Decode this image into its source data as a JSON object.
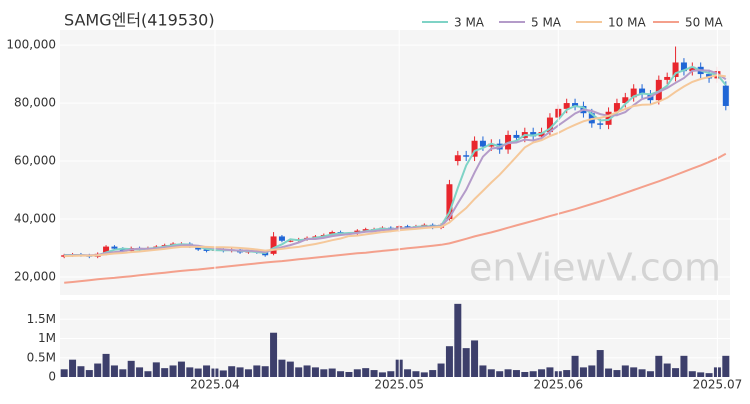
{
  "chart_data": [
    {
      "type": "candlestick",
      "title": "SAMG엔터(419530)",
      "watermark": "enViewV.com",
      "up_color": "#e8262d",
      "down_color": "#1f66d6",
      "open": [
        27000,
        27500,
        27800,
        27500,
        27000,
        28000,
        30500,
        29800,
        29000,
        30000,
        29500,
        30000,
        30500,
        31000,
        31500,
        31500,
        30500,
        29500,
        29000,
        29500,
        29000,
        29500,
        28500,
        28800,
        28500,
        28000,
        34000,
        32500,
        32500,
        33000,
        33500,
        34000,
        34500,
        35500,
        35000,
        35000,
        36000,
        36500,
        36500,
        37000,
        36000,
        37500,
        37000,
        37500,
        38000,
        37000,
        40000,
        60000,
        62000,
        61500,
        67000,
        65000,
        66000,
        64000,
        69000,
        68000,
        70000,
        68500,
        70000,
        75000,
        78000,
        80000,
        79000,
        76500,
        73000,
        72500,
        77000,
        80000,
        82000,
        85000,
        83000,
        81000,
        88000,
        89000,
        94000,
        91000,
        92500,
        90000,
        88500,
        86000
      ],
      "high": [
        28000,
        28300,
        28300,
        28000,
        28500,
        31000,
        31000,
        30300,
        30500,
        30500,
        30500,
        31000,
        31500,
        32000,
        32000,
        32000,
        31000,
        30000,
        30000,
        30000,
        30000,
        30000,
        29300,
        29300,
        29000,
        35500,
        34500,
        33000,
        33500,
        34000,
        34500,
        35000,
        36000,
        36000,
        35500,
        36500,
        37000,
        37000,
        37500,
        37500,
        38000,
        38000,
        38000,
        38500,
        38500,
        38500,
        53500,
        63500,
        63500,
        68500,
        68500,
        67500,
        67500,
        70500,
        70500,
        71500,
        71500,
        71500,
        76500,
        79500,
        81500,
        81500,
        80500,
        78000,
        74500,
        78500,
        81500,
        83500,
        86500,
        86500,
        84500,
        89500,
        90500,
        99500,
        95500,
        94000,
        94000,
        91500,
        92500,
        87500
      ],
      "low": [
        26500,
        27000,
        27000,
        26500,
        26500,
        27500,
        29300,
        28500,
        28500,
        29000,
        29000,
        29500,
        30000,
        30500,
        31000,
        30000,
        29000,
        28500,
        28500,
        28500,
        28500,
        28000,
        28000,
        28000,
        27000,
        27500,
        32000,
        32000,
        32000,
        32500,
        33000,
        33500,
        34000,
        34500,
        34500,
        34500,
        35500,
        36000,
        36000,
        35500,
        35500,
        36500,
        36500,
        37000,
        36500,
        36500,
        39500,
        58500,
        60000,
        60000,
        63500,
        63500,
        62500,
        62500,
        66500,
        66500,
        67000,
        67000,
        68500,
        73500,
        76500,
        77500,
        75000,
        71500,
        71000,
        71000,
        75500,
        78500,
        80500,
        81500,
        79500,
        79500,
        86500,
        87500,
        89500,
        89500,
        88500,
        87000,
        87000,
        77500
      ],
      "close": [
        27500,
        27800,
        27500,
        27000,
        28000,
        30500,
        29800,
        29000,
        30000,
        29500,
        30000,
        30500,
        31000,
        31500,
        31500,
        30500,
        29500,
        29000,
        29500,
        29000,
        29500,
        28500,
        28800,
        28500,
        27500,
        34000,
        32500,
        32500,
        33000,
        33500,
        34000,
        34500,
        35500,
        35000,
        35000,
        36000,
        36500,
        36500,
        37000,
        36000,
        37500,
        37000,
        37500,
        38000,
        37000,
        38000,
        52000,
        62000,
        61500,
        67000,
        65000,
        66000,
        64000,
        69000,
        68000,
        70000,
        68500,
        70000,
        75000,
        78000,
        80000,
        79000,
        76500,
        73000,
        72500,
        77000,
        80000,
        82000,
        85000,
        83000,
        81000,
        88000,
        89000,
        94000,
        91000,
        92500,
        90000,
        88500,
        91000,
        79000
      ],
      "series": [
        {
          "name": "3 MA",
          "color": "#7fd3c6",
          "values": [
            27600,
            27600,
            27600,
            27400,
            27500,
            28500,
            29400,
            29800,
            29600,
            29500,
            29800,
            30000,
            30500,
            31000,
            31300,
            31200,
            30500,
            29700,
            29300,
            29200,
            29300,
            29000,
            28900,
            28600,
            28300,
            30000,
            31300,
            33000,
            32700,
            33000,
            33500,
            34000,
            34700,
            35000,
            35200,
            35300,
            35800,
            36300,
            36700,
            36500,
            36800,
            36800,
            37300,
            37500,
            37500,
            37700,
            42300,
            50700,
            58500,
            63500,
            64500,
            66000,
            65000,
            66300,
            67000,
            69000,
            68800,
            69500,
            71200,
            74300,
            77700,
            79000,
            78500,
            76200,
            74000,
            74200,
            76500,
            79700,
            82300,
            83300,
            83000,
            84000,
            86000,
            90300,
            91300,
            92500,
            91200,
            90300,
            89800,
            86200
          ]
        },
        {
          "name": "5 MA",
          "color": "#b49bc9",
          "values": [
            27400,
            27500,
            27500,
            27500,
            27600,
            28200,
            28600,
            28900,
            29500,
            29800,
            29700,
            29800,
            30200,
            30500,
            30900,
            31000,
            30800,
            30300,
            30000,
            29500,
            29300,
            29100,
            29100,
            28900,
            28600,
            29500,
            30300,
            31000,
            31900,
            33100,
            33100,
            33500,
            34100,
            34500,
            34800,
            35200,
            35600,
            35800,
            36200,
            36400,
            36700,
            36800,
            37000,
            37200,
            37400,
            37500,
            40500,
            45400,
            50100,
            56100,
            61500,
            64300,
            64700,
            66200,
            66400,
            67400,
            67100,
            67900,
            70100,
            72300,
            74300,
            76400,
            77700,
            77300,
            76200,
            75600,
            75800,
            76900,
            79300,
            81400,
            82200,
            83800,
            85200,
            87000,
            88600,
            91100,
            91300,
            91200,
            90200,
            88200
          ]
        },
        {
          "name": "10 MA",
          "color": "#f5c89a",
          "values": [
            27200,
            27300,
            27400,
            27400,
            27500,
            27800,
            28100,
            28300,
            28600,
            28800,
            29100,
            29400,
            29700,
            30100,
            30400,
            30400,
            30400,
            30400,
            30300,
            30300,
            30200,
            30000,
            29800,
            29500,
            29100,
            29400,
            29700,
            30100,
            30400,
            30900,
            31400,
            32000,
            32700,
            33300,
            34100,
            34300,
            34700,
            35100,
            35500,
            35800,
            36100,
            36400,
            36600,
            36900,
            37100,
            37300,
            38800,
            41400,
            43800,
            46900,
            49700,
            52600,
            55300,
            58400,
            61500,
            64700,
            66400,
            67200,
            68600,
            69700,
            71200,
            72500,
            73700,
            74500,
            74900,
            75600,
            76800,
            78000,
            79000,
            79400,
            79500,
            80500,
            81800,
            83900,
            85700,
            87300,
            88300,
            89000,
            89600,
            89200
          ]
        },
        {
          "name": "50 MA",
          "color": "#f4a08c",
          "values": [
            18000,
            18300,
            18600,
            18900,
            19200,
            19500,
            19700,
            20000,
            20300,
            20600,
            20900,
            21200,
            21500,
            21800,
            22100,
            22400,
            22600,
            22900,
            23200,
            23500,
            23800,
            24100,
            24400,
            24700,
            25000,
            25300,
            25500,
            25800,
            26100,
            26400,
            26700,
            27000,
            27300,
            27600,
            27900,
            28200,
            28400,
            28700,
            29000,
            29300,
            29600,
            29900,
            30200,
            30500,
            30800,
            31100,
            31600,
            32400,
            33200,
            34000,
            34700,
            35400,
            36200,
            37000,
            37800,
            38600,
            39400,
            40200,
            41000,
            41800,
            42600,
            43400,
            44300,
            45200,
            46100,
            47000,
            48000,
            49000,
            50000,
            51000,
            52000,
            53000,
            54100,
            55200,
            56300,
            57400,
            58500,
            59700,
            60900,
            62500
          ]
        }
      ],
      "ylim": [
        13800,
        105200
      ],
      "yticks": [
        {
          "value": 20000,
          "label": "20,000"
        },
        {
          "value": 40000,
          "label": "40,000"
        },
        {
          "value": 60000,
          "label": "60,000"
        },
        {
          "value": 80000,
          "label": "80,000"
        },
        {
          "value": 100000,
          "label": "100,000"
        }
      ],
      "grid": true,
      "legend": "top-right"
    },
    {
      "type": "bar",
      "color": "#3d3f6b",
      "categories": [
        null,
        null,
        null,
        null,
        null,
        null,
        null,
        null,
        null,
        null,
        null,
        null,
        null,
        null,
        null,
        null,
        null,
        null,
        "2025.04",
        null,
        null,
        null,
        null,
        null,
        null,
        null,
        null,
        null,
        null,
        null,
        null,
        null,
        null,
        null,
        null,
        null,
        null,
        null,
        null,
        null,
        "2025.05",
        null,
        null,
        null,
        null,
        null,
        null,
        null,
        null,
        null,
        null,
        null,
        null,
        null,
        null,
        null,
        null,
        null,
        null,
        "2025.06",
        null,
        null,
        null,
        null,
        null,
        null,
        null,
        null,
        null,
        null,
        null,
        null,
        null,
        null,
        null,
        null,
        null,
        null,
        "2025.07",
        null
      ],
      "values": [
        200000,
        450000,
        280000,
        180000,
        350000,
        600000,
        300000,
        200000,
        420000,
        250000,
        150000,
        380000,
        230000,
        300000,
        400000,
        250000,
        220000,
        300000,
        220000,
        170000,
        280000,
        250000,
        200000,
        300000,
        280000,
        1150000,
        450000,
        400000,
        250000,
        300000,
        250000,
        200000,
        220000,
        150000,
        130000,
        200000,
        230000,
        180000,
        120000,
        150000,
        450000,
        200000,
        150000,
        120000,
        180000,
        350000,
        800000,
        1900000,
        750000,
        950000,
        300000,
        200000,
        150000,
        200000,
        180000,
        130000,
        150000,
        200000,
        250000,
        150000,
        180000,
        550000,
        250000,
        300000,
        700000,
        220000,
        180000,
        300000,
        250000,
        200000,
        150000,
        550000,
        350000,
        230000,
        550000,
        150000,
        120000,
        100000,
        250000,
        550000
      ],
      "ylim": [
        0,
        2000000
      ],
      "yticks": [
        0,
        {
          "value": 500000,
          "label": "0.5M"
        },
        {
          "value": 1000000,
          "label": "1M"
        },
        {
          "value": 1500000,
          "label": "1.5M"
        }
      ],
      "grid": true
    }
  ]
}
